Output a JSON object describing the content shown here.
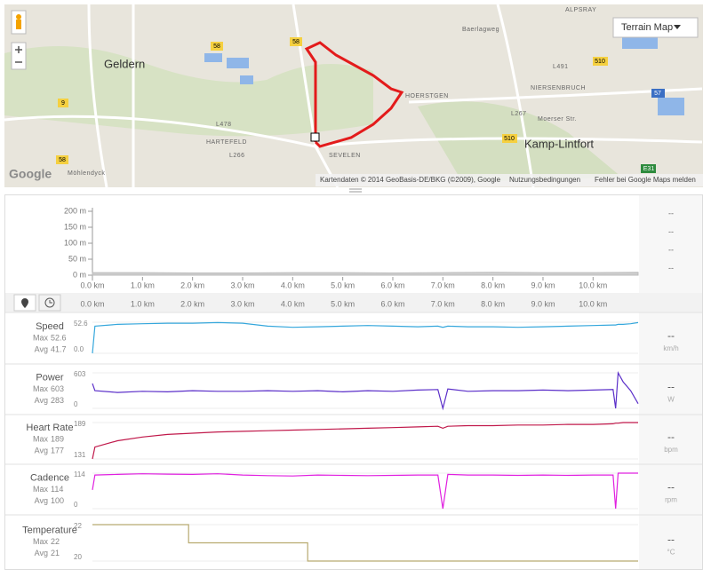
{
  "map": {
    "labels": [
      "Geldern",
      "Kamp-Lintfort",
      "HOERSTGEN",
      "HARTEFELD",
      "SEVELEN",
      "NIERSENBRUCH",
      "Moerser Str.",
      "Baerlagweg",
      "ALPSRAY",
      "Möhlendyck",
      "L478",
      "L266",
      "L267",
      "L491"
    ],
    "road_shields": [
      "58",
      "58",
      "510",
      "510",
      "9",
      "57",
      "58",
      "E31"
    ],
    "map_type": "Terrain Map",
    "logo": "Google",
    "attribution": "Kartendaten © 2014 GeoBasis-DE/BKG (©2009), Google",
    "terms": "Nutzungsbedingungen",
    "report": "Fehler bei Google Maps melden"
  },
  "chart_data": [
    {
      "type": "area",
      "color": "#cfcfcf",
      "x": [
        0,
        1,
        2,
        3,
        4,
        5,
        6,
        7,
        8,
        9,
        10,
        10.9
      ],
      "values": [
        8,
        8,
        7,
        7,
        8,
        8,
        7,
        8,
        9,
        8,
        8,
        9
      ],
      "xlim": [
        0,
        10.9
      ],
      "ylim": [
        0,
        200
      ],
      "xticks": [
        {
          "value": 0,
          "label": "0.0 km"
        },
        {
          "value": 1,
          "label": "1.0 km"
        },
        {
          "value": 2,
          "label": "2.0 km"
        },
        {
          "value": 3,
          "label": "3.0 km"
        },
        {
          "value": 4,
          "label": "4.0 km"
        },
        {
          "value": 5,
          "label": "5.0 km"
        },
        {
          "value": 6,
          "label": "6.0 km"
        },
        {
          "value": 7,
          "label": "7.0 km"
        },
        {
          "value": 8,
          "label": "8.0 km"
        },
        {
          "value": 9,
          "label": "9.0 km"
        },
        {
          "value": 10,
          "label": "10.0 km"
        }
      ],
      "yticks": [
        {
          "value": 200,
          "label": "200 m"
        },
        {
          "value": 150,
          "label": "150 m"
        },
        {
          "value": 100,
          "label": "100 m"
        },
        {
          "value": 50,
          "label": "50 m"
        },
        {
          "value": 0,
          "label": "0 m"
        }
      ],
      "readouts": [
        "--",
        "--",
        "--",
        "--"
      ]
    },
    {
      "type": "line",
      "name": "Speed",
      "color": "#35a7dc",
      "stats": [
        {
          "name": "Max",
          "value": 52.6
        },
        {
          "name": "Avg",
          "value": 41.7
        }
      ],
      "readout": "--",
      "unit": "km/h",
      "xlim": [
        0,
        10.9
      ],
      "ylim": [
        0,
        52.6
      ],
      "yticks": [
        {
          "value": 0,
          "label": "0.0"
        },
        52.6
      ],
      "x": [
        0,
        0.05,
        0.5,
        1,
        1.5,
        2,
        2.5,
        3,
        3.5,
        4,
        4.5,
        5,
        5.5,
        6,
        6.5,
        6.9,
        7.0,
        7.1,
        7.5,
        8,
        8.5,
        9,
        9.5,
        10,
        10.4,
        10.45,
        10.5,
        10.6,
        10.75,
        10.9
      ],
      "values": [
        0,
        46,
        49,
        50,
        51,
        51,
        52,
        51,
        46,
        44,
        45,
        46,
        47,
        46,
        45,
        46,
        44,
        46,
        45,
        45,
        44,
        45,
        46,
        47,
        48,
        48,
        49,
        49,
        50,
        52
      ]
    },
    {
      "type": "line",
      "name": "Power",
      "color": "#5b2fc9",
      "stats": [
        {
          "name": "Max",
          "value": 603
        },
        {
          "name": "Avg",
          "value": 283
        }
      ],
      "readout": "--",
      "unit": "W",
      "xlim": [
        0,
        10.9
      ],
      "ylim": [
        0,
        603
      ],
      "yticks": [
        0,
        603
      ],
      "x": [
        0,
        0.05,
        0.5,
        1,
        1.5,
        2,
        2.5,
        3,
        3.5,
        4,
        4.5,
        5,
        5.5,
        6,
        6.5,
        6.9,
        7.0,
        7.1,
        7.5,
        8,
        8.5,
        9,
        9.5,
        10,
        10.4,
        10.45,
        10.5,
        10.6,
        10.75,
        10.9
      ],
      "values": [
        420,
        300,
        270,
        290,
        280,
        300,
        290,
        290,
        300,
        290,
        300,
        280,
        300,
        290,
        310,
        320,
        0,
        330,
        290,
        300,
        300,
        310,
        300,
        310,
        320,
        0,
        603,
        450,
        300,
        80
      ]
    },
    {
      "type": "line",
      "name": "Heart Rate",
      "color": "#c0184a",
      "stats": [
        {
          "name": "Max",
          "value": 189
        },
        {
          "name": "Avg",
          "value": 177
        }
      ],
      "readout": "--",
      "unit": "bpm",
      "xlim": [
        0,
        10.9
      ],
      "ylim": [
        131,
        189
      ],
      "yticks": [
        131,
        189
      ],
      "x": [
        0,
        0.05,
        0.5,
        1,
        1.5,
        2,
        2.5,
        3,
        3.5,
        4,
        4.5,
        5,
        5.5,
        6,
        6.5,
        6.9,
        7.0,
        7.1,
        7.5,
        8,
        8.5,
        9,
        9.5,
        10,
        10.4,
        10.45,
        10.5,
        10.6,
        10.75,
        10.9
      ],
      "values": [
        131,
        150,
        160,
        166,
        170,
        172,
        174,
        175,
        176,
        177,
        178,
        179,
        180,
        181,
        182,
        183,
        180,
        183,
        184,
        184,
        185,
        185,
        186,
        186,
        187,
        188,
        188,
        189,
        189,
        189
      ]
    },
    {
      "type": "line",
      "name": "Cadence",
      "color": "#e020e0",
      "stats": [
        {
          "name": "Max",
          "value": 114
        },
        {
          "name": "Avg",
          "value": 100
        }
      ],
      "readout": "--",
      "unit": "rpm",
      "xlim": [
        0,
        10.9
      ],
      "ylim": [
        0,
        114
      ],
      "yticks": [
        0,
        114
      ],
      "x": [
        0,
        0.05,
        0.5,
        1,
        1.5,
        2,
        2.5,
        3,
        3.5,
        4,
        4.5,
        5,
        5.5,
        6,
        6.5,
        6.9,
        7.0,
        7.1,
        7.5,
        8,
        8.5,
        9,
        9.5,
        10,
        10.4,
        10.45,
        10.5,
        10.6,
        10.75,
        10.9
      ],
      "values": [
        60,
        108,
        110,
        112,
        111,
        110,
        112,
        108,
        106,
        105,
        108,
        107,
        106,
        107,
        108,
        108,
        0,
        110,
        108,
        108,
        107,
        108,
        107,
        108,
        108,
        0,
        114,
        114,
        114,
        114
      ]
    },
    {
      "type": "line",
      "name": "Temperature",
      "color": "#b8aa70",
      "stats": [
        {
          "name": "Max",
          "value": 22
        },
        {
          "name": "Avg",
          "value": 21
        }
      ],
      "readout": "--",
      "unit": "°C",
      "xlim": [
        0,
        10.9
      ],
      "ylim": [
        20,
        22
      ],
      "yticks": [
        20,
        22
      ],
      "x": [
        0,
        1.92,
        1.92,
        4.3,
        4.3,
        10.9
      ],
      "values": [
        22,
        22,
        21,
        21,
        20,
        20
      ]
    }
  ]
}
